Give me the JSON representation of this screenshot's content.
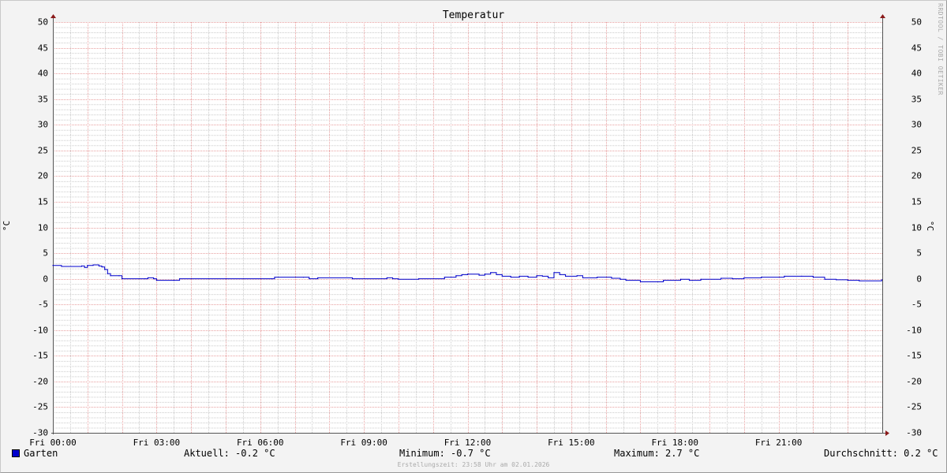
{
  "chart_data": {
    "type": "line",
    "title": "Temperatur",
    "ylabel": "°C",
    "ylim": [
      -30,
      50
    ],
    "yticks": [
      50,
      45,
      40,
      35,
      30,
      25,
      20,
      15,
      10,
      5,
      0,
      -5,
      -10,
      -15,
      -20,
      -25,
      -30
    ],
    "xlim": [
      "Fri 00:00",
      "Fri 24:00"
    ],
    "xticks": [
      "Fri 00:00",
      "Fri 03:00",
      "Fri 06:00",
      "Fri 09:00",
      "Fri 12:00",
      "Fri 15:00",
      "Fri 18:00",
      "Fri 21:00"
    ],
    "grid": true,
    "legend_position": "bottom-left",
    "series": [
      {
        "name": "Garten",
        "color": "#0000cc",
        "x": [
          "00:00",
          "00:15",
          "00:50",
          "00:55",
          "01:00",
          "01:10",
          "01:20",
          "01:25",
          "01:30",
          "01:35",
          "01:40",
          "01:55",
          "02:00",
          "02:40",
          "02:45",
          "02:55",
          "03:00",
          "03:30",
          "03:40",
          "06:20",
          "06:25",
          "07:15",
          "07:25",
          "07:40",
          "08:40",
          "09:40",
          "09:50",
          "10:00",
          "10:35",
          "11:20",
          "11:40",
          "11:50",
          "12:00",
          "12:20",
          "12:30",
          "12:40",
          "12:50",
          "13:00",
          "13:15",
          "13:30",
          "13:45",
          "14:00",
          "14:10",
          "14:20",
          "14:30",
          "14:40",
          "14:50",
          "15:10",
          "15:20",
          "15:45",
          "16:10",
          "16:25",
          "16:35",
          "17:00",
          "17:40",
          "18:10",
          "18:25",
          "18:45",
          "19:20",
          "19:40",
          "20:00",
          "20:30",
          "21:10",
          "21:40",
          "22:00",
          "22:20",
          "22:40",
          "23:00",
          "23:20",
          "23:59"
        ],
        "values": [
          2.6,
          2.4,
          2.5,
          2.2,
          2.6,
          2.7,
          2.5,
          2.3,
          1.8,
          1.0,
          0.6,
          0.6,
          0.0,
          0.0,
          0.2,
          0.0,
          -0.3,
          -0.3,
          0.0,
          0.0,
          0.3,
          0.3,
          0.0,
          0.2,
          0.0,
          0.2,
          0.0,
          -0.1,
          0.0,
          0.3,
          0.6,
          0.8,
          0.9,
          0.7,
          0.9,
          1.2,
          0.8,
          0.5,
          0.3,
          0.5,
          0.3,
          0.6,
          0.5,
          0.2,
          1.2,
          0.8,
          0.5,
          0.6,
          0.2,
          0.3,
          0.1,
          -0.1,
          -0.3,
          -0.6,
          -0.3,
          -0.1,
          -0.3,
          -0.1,
          0.1,
          0.0,
          0.2,
          0.3,
          0.5,
          0.5,
          0.3,
          -0.1,
          -0.2,
          -0.3,
          -0.4,
          -0.2
        ]
      }
    ]
  },
  "legend": {
    "name": "Garten",
    "color": "#0000cc"
  },
  "stats": {
    "current": "Aktuell: -0.2 °C",
    "minimum": "Minimum: -0.7 °C",
    "maximum": "Maximum: 2.7 °C",
    "average": "Durchschnitt: 0.2 °C"
  },
  "watermark": "RRDTOOL / TOBI OETIKER",
  "footer": "Erstellungszeit: 23:58 Uhr am 02.01.2026"
}
